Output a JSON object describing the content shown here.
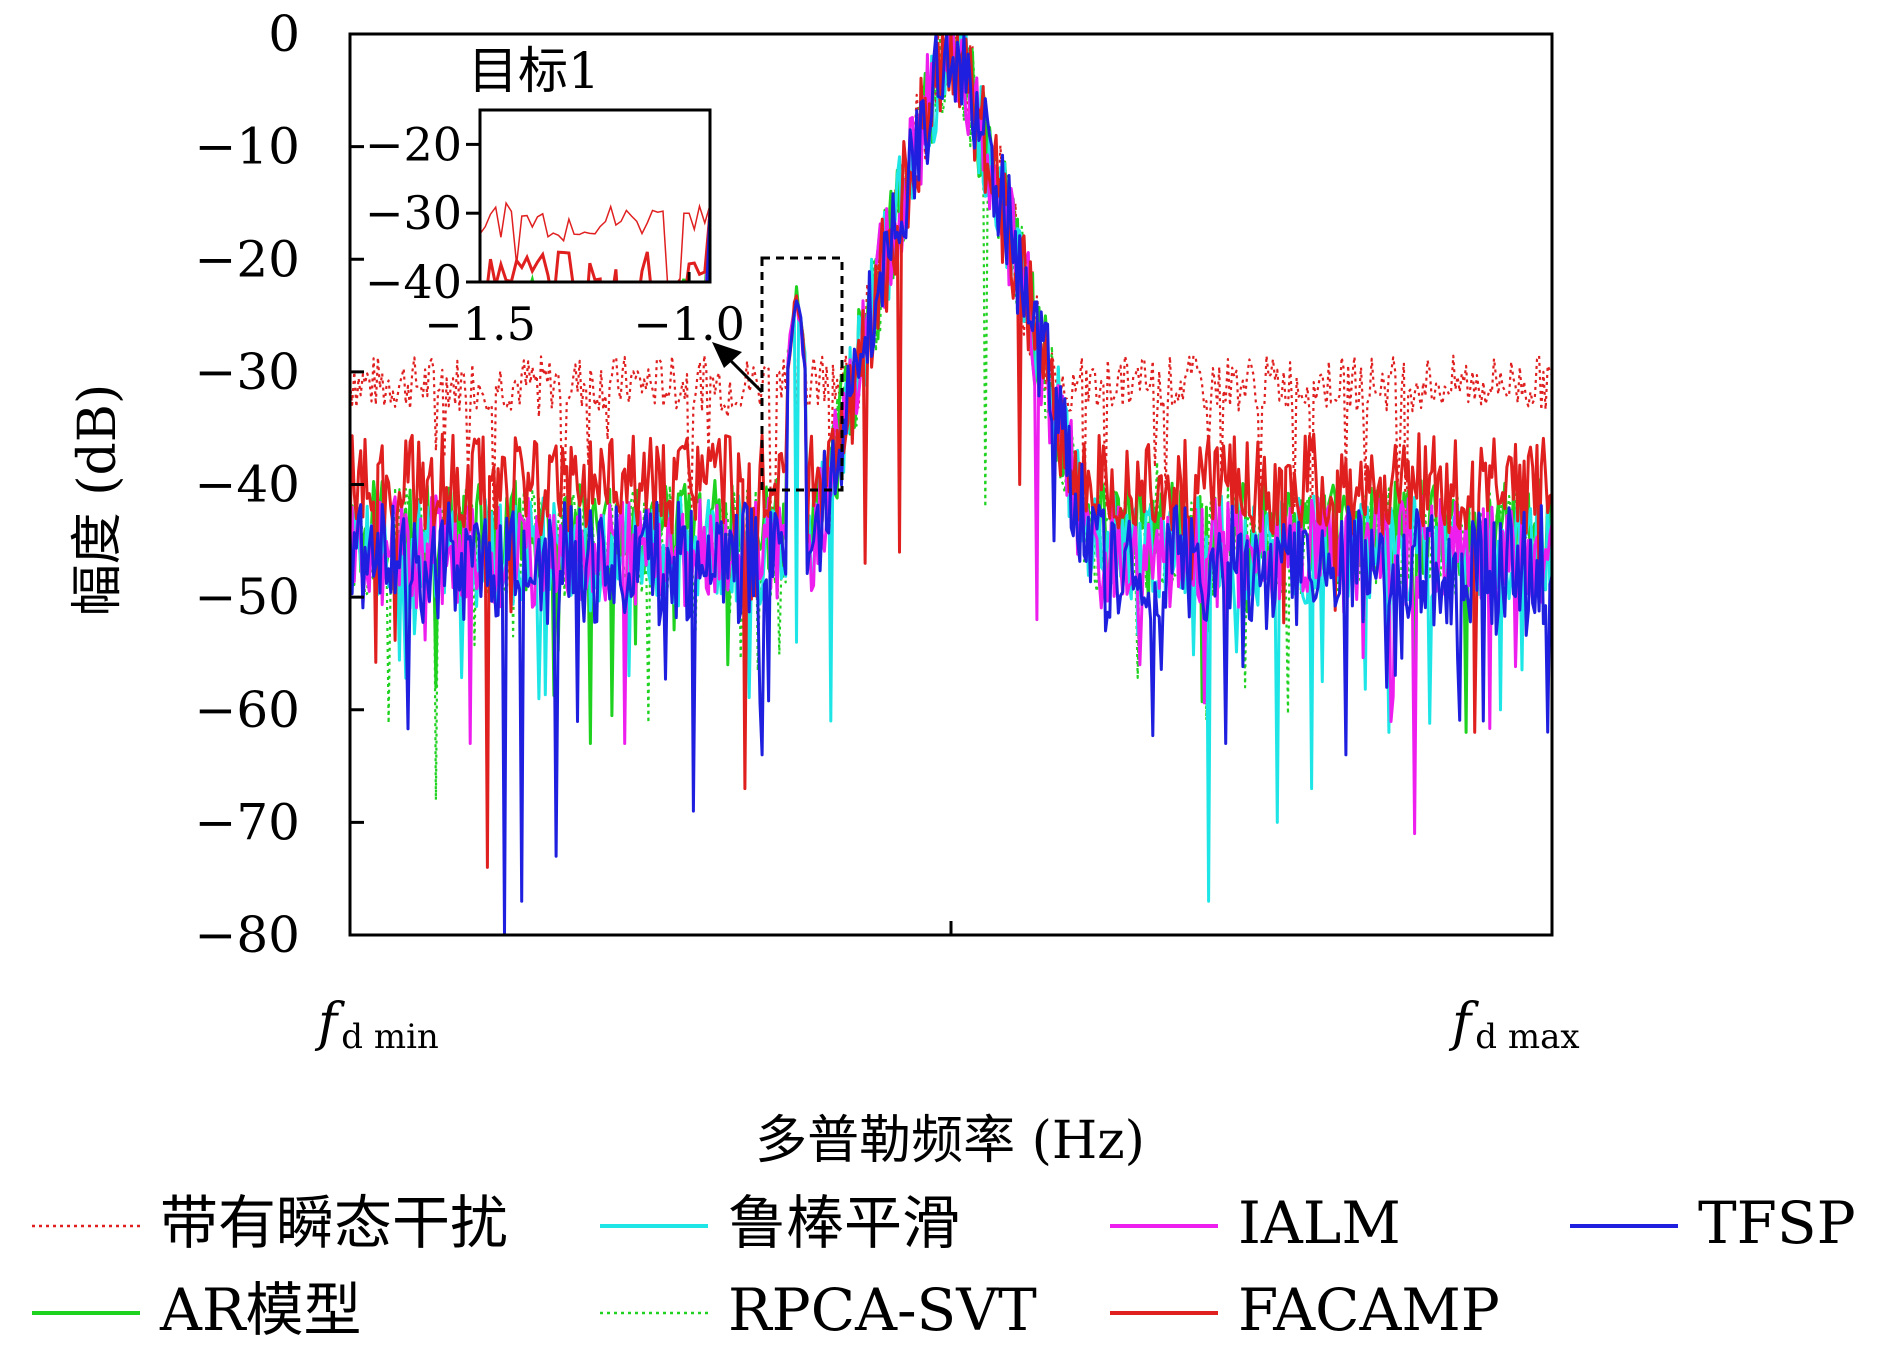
{
  "chart_data": {
    "type": "line",
    "title": "",
    "ylabel": "幅度 (dB)",
    "xlabel": "多普勒频率 (Hz)",
    "ylim": [
      -80,
      0
    ],
    "yticks": [
      0,
      -10,
      -20,
      -30,
      -40,
      -50,
      -60,
      -70,
      -80
    ],
    "xticks": [
      {
        "base": "f",
        "sub": "d min"
      },
      {
        "base": "f",
        "sub": "d max"
      }
    ],
    "x_range": [
      -3.5,
      3.5
    ],
    "grid": false,
    "legend_position": "bottom",
    "series": [
      {
        "name": "带有瞬态干扰",
        "color": "#e02020",
        "style": "dotted",
        "floor": -31,
        "noise": 2.5,
        "drops": [
          [
            -3.48,
            -30
          ],
          [
            -3.3,
            -33
          ],
          [
            -3.0,
            -37
          ],
          [
            -2.4,
            -34
          ],
          [
            -2.0,
            -36
          ],
          [
            -1.3,
            -34
          ],
          [
            -1.0,
            -30
          ],
          [
            -0.9,
            -38
          ],
          [
            -0.7,
            -49
          ],
          [
            1.0,
            -33
          ],
          [
            1.2,
            -34
          ],
          [
            1.5,
            -37
          ],
          [
            2.0,
            -42
          ],
          [
            2.6,
            -40
          ],
          [
            2.9,
            -32
          ],
          [
            3.2,
            -30
          ],
          [
            3.45,
            -30
          ]
        ]
      },
      {
        "name": "AR模型",
        "color": "#1fd21f",
        "style": "solid",
        "floor": -44,
        "noise": 4.5,
        "drops": [
          [
            -3.0,
            -58
          ],
          [
            -2.1,
            -63
          ],
          [
            -1.3,
            -56
          ],
          [
            1.5,
            -53
          ],
          [
            2.7,
            -58
          ],
          [
            3.0,
            -62
          ]
        ]
      },
      {
        "name": "鲁棒平滑",
        "color": "#1fe6e6",
        "style": "solid",
        "floor": -46,
        "noise": 5,
        "drops": [
          [
            -0.9,
            -54
          ],
          [
            -0.7,
            -61
          ],
          [
            1.5,
            -77
          ],
          [
            1.9,
            -70
          ],
          [
            2.1,
            -67
          ],
          [
            2.55,
            -62
          ],
          [
            3.2,
            -60
          ]
        ]
      },
      {
        "name": "RPCA-SVT",
        "color": "#1fd21f",
        "style": "dotted",
        "floor": -45,
        "noise": 5,
        "drops": [
          [
            -3.0,
            -68
          ],
          [
            -1.45,
            -46
          ],
          [
            0.2,
            -42
          ],
          [
            1.2,
            -38
          ]
        ]
      },
      {
        "name": "IALM",
        "color": "#ee1fee",
        "style": "solid",
        "floor": -46,
        "noise": 5,
        "drops": [
          [
            -2.8,
            -63
          ],
          [
            -1.9,
            -63
          ],
          [
            2.7,
            -71
          ],
          [
            1.1,
            -56
          ],
          [
            0.5,
            -52
          ]
        ]
      },
      {
        "name": "FACAMP",
        "color": "#e01f1f",
        "style": "solid",
        "floor": -40,
        "noise": 4.5,
        "drops": [
          [
            -2.7,
            -74
          ],
          [
            -1.2,
            -67
          ],
          [
            -0.5,
            -47
          ],
          [
            -0.3,
            -46
          ],
          [
            0.4,
            -40
          ],
          [
            3.05,
            -62
          ]
        ]
      },
      {
        "name": "TFSP",
        "color": "#1f1fe0",
        "style": "solid",
        "floor": -47,
        "noise": 5.5,
        "drops": [
          [
            -2.6,
            -80
          ],
          [
            -2.5,
            -77
          ],
          [
            -2.3,
            -73
          ],
          [
            -1.5,
            -69
          ],
          [
            -1.1,
            -64
          ],
          [
            0.6,
            -45
          ],
          [
            0.9,
            -53
          ],
          [
            1.6,
            -63
          ],
          [
            2.3,
            -64
          ],
          [
            3.1,
            -61
          ]
        ]
      }
    ],
    "peaks": [
      {
        "label": "main",
        "x": 0.0,
        "y": 0,
        "width": 0.55
      },
      {
        "label": "目标1",
        "x": -0.9,
        "y": -23,
        "width": 0.04
      }
    ]
  },
  "inset": {
    "title": "目标1",
    "xticks": [
      "−1.5",
      "−1.0"
    ],
    "yticks": [
      "−20",
      "−30",
      "−40"
    ],
    "x_range": [
      -1.5,
      -0.95
    ],
    "ylim": [
      -40,
      -15
    ]
  },
  "legend": [
    {
      "label": "带有瞬态干扰",
      "color": "#e02020",
      "style": "dotted"
    },
    {
      "label": "鲁棒平滑",
      "color": "#1fe6e6",
      "style": "solid"
    },
    {
      "label": "IALM",
      "color": "#ee1fee",
      "style": "solid"
    },
    {
      "label": "TFSP",
      "color": "#1f1fe0",
      "style": "solid"
    },
    {
      "label": "AR模型",
      "color": "#1fd21f",
      "style": "solid"
    },
    {
      "label": "RPCA-SVT",
      "color": "#1fd21f",
      "style": "dotted"
    },
    {
      "label": "FACAMP",
      "color": "#e01f1f",
      "style": "solid"
    }
  ]
}
